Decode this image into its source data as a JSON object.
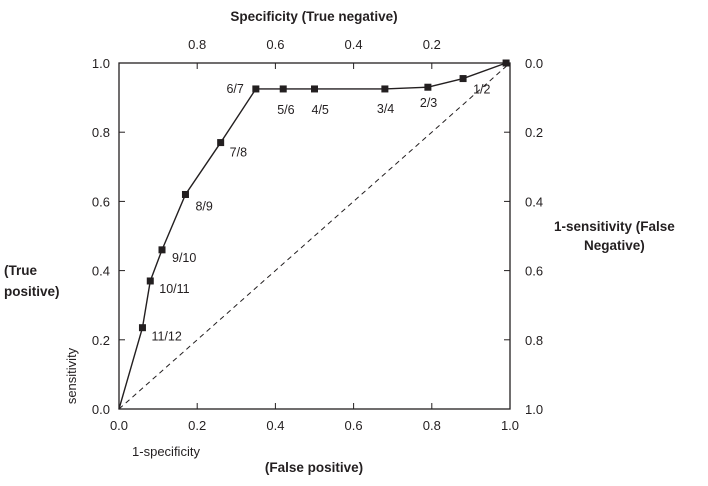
{
  "chart_data": {
    "type": "line",
    "top_title": "Specificity (True negative)",
    "bottom_title": "(False positive)",
    "x_axis_label": "1-specificity",
    "y_axis_label": "sensitivity",
    "left_label_lines": [
      "(True",
      "positive)"
    ],
    "right_label_lines": [
      "1-sensitivity (False",
      "Negative)"
    ],
    "xlim": [
      0,
      1
    ],
    "ylim": [
      0,
      1
    ],
    "x_ticks": [
      "0.0",
      "0.2",
      "0.4",
      "0.6",
      "0.8",
      "1.0"
    ],
    "y_ticks": [
      "0.0",
      "0.2",
      "0.4",
      "0.6",
      "0.8",
      "1.0"
    ],
    "top_ticks": [
      {
        "x": 0.2,
        "label": "0.8"
      },
      {
        "x": 0.4,
        "label": "0.6"
      },
      {
        "x": 0.6,
        "label": "0.4"
      },
      {
        "x": 0.8,
        "label": "0.2"
      }
    ],
    "right_ticks": [
      {
        "y": 1.0,
        "label": "0.0"
      },
      {
        "y": 0.8,
        "label": "0.2"
      },
      {
        "y": 0.6,
        "label": "0.4"
      },
      {
        "y": 0.4,
        "label": "0.6"
      },
      {
        "y": 0.2,
        "label": "0.8"
      },
      {
        "y": 0.0,
        "label": "1.0"
      }
    ],
    "roc_points": [
      {
        "x": 0.06,
        "y": 0.235,
        "label": "11/12"
      },
      {
        "x": 0.08,
        "y": 0.37,
        "label": "10/11"
      },
      {
        "x": 0.11,
        "y": 0.46,
        "label": "9/10"
      },
      {
        "x": 0.17,
        "y": 0.62,
        "label": "8/9"
      },
      {
        "x": 0.26,
        "y": 0.77,
        "label": "7/8"
      },
      {
        "x": 0.35,
        "y": 0.925,
        "label": "6/7"
      },
      {
        "x": 0.42,
        "y": 0.925,
        "label": "5/6"
      },
      {
        "x": 0.5,
        "y": 0.925,
        "label": "4/5"
      },
      {
        "x": 0.68,
        "y": 0.925,
        "label": "3/4"
      },
      {
        "x": 0.79,
        "y": 0.93,
        "label": "2/3"
      },
      {
        "x": 0.88,
        "y": 0.955,
        "label": "1/2"
      },
      {
        "x": 0.99,
        "y": 1.0,
        "label": ""
      }
    ],
    "reference_line": {
      "from": [
        0,
        0
      ],
      "to": [
        1,
        1
      ],
      "style": "dashed"
    }
  }
}
